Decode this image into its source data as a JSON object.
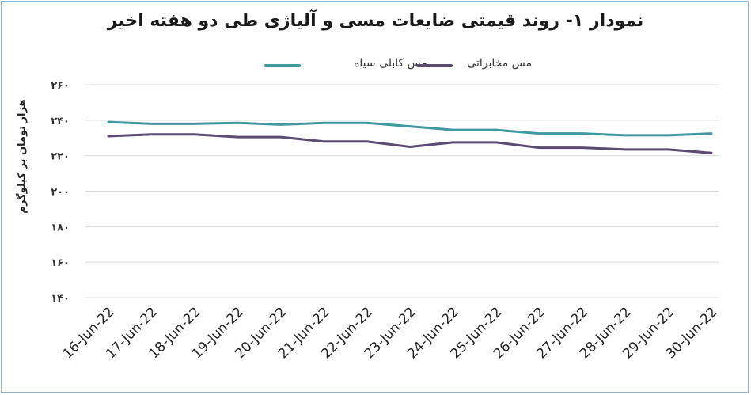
{
  "chart_data": {
    "type": "line",
    "title": "نمودار ۱- روند قیمتی ضایعات مسی و آلیاژی طی دو هفته اخیر",
    "ylabel": "هزار تومان بر کیلوگرم",
    "xlabel": "",
    "categories": [
      "16-Jun-22",
      "17-Jun-22",
      "18-Jun-22",
      "19-Jun-22",
      "20-Jun-22",
      "21-Jun-22",
      "22-Jun-22",
      "23-Jun-22",
      "24-Jun-22",
      "25-Jun-22",
      "26-Jun-22",
      "27-Jun-22",
      "28-Jun-22",
      "29-Jun-22",
      "30-Jun-22"
    ],
    "ylim": [
      140,
      260
    ],
    "yticks": [
      140,
      160,
      180,
      200,
      220,
      240,
      260
    ],
    "ytick_labels": [
      "۱۴۰",
      "۱۶۰",
      "۱۸۰",
      "۲۰۰",
      "۲۲۰",
      "۲۴۰",
      "۲۶۰"
    ],
    "grid": true,
    "legend_position": "top",
    "series": [
      {
        "name": "مس کابلی سیاه",
        "color": "#3e9aa0",
        "values": [
          239,
          238,
          238,
          238.5,
          237.5,
          238.5,
          238.5,
          236.5,
          234.5,
          234.5,
          232.5,
          232.5,
          231.5,
          231.5,
          232.5
        ]
      },
      {
        "name": "مس مخابراتی",
        "color": "#5b4a72",
        "values": [
          231,
          232,
          232,
          230.5,
          230.5,
          228,
          228,
          225,
          227.5,
          227.5,
          224.5,
          224.5,
          223.5,
          223.5,
          221.5
        ]
      }
    ]
  }
}
